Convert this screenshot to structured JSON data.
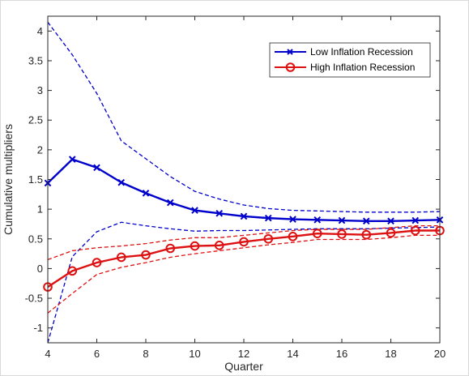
{
  "chart_data": {
    "type": "line",
    "title": "",
    "xlabel": "Quarter",
    "ylabel": "Cumulative multipliers",
    "xlim": [
      4,
      20
    ],
    "ylim": [
      -1.25,
      4.25
    ],
    "xticks": [
      4,
      6,
      8,
      10,
      12,
      14,
      16,
      18,
      20
    ],
    "yticks": [
      -1,
      -0.5,
      0,
      0.5,
      1,
      1.5,
      2,
      2.5,
      3,
      3.5,
      4
    ],
    "x": [
      4,
      5,
      6,
      7,
      8,
      9,
      10,
      11,
      12,
      13,
      14,
      15,
      16,
      17,
      18,
      19,
      20
    ],
    "grid": false,
    "legend_position": "top-right",
    "series": [
      {
        "name": "Low Inflation Recession",
        "color": "#0000cc",
        "marker": "x",
        "values": [
          1.44,
          1.84,
          1.7,
          1.45,
          1.27,
          1.11,
          0.98,
          0.93,
          0.88,
          0.85,
          0.83,
          0.82,
          0.81,
          0.8,
          0.8,
          0.81,
          0.82
        ],
        "upper": [
          4.15,
          3.6,
          2.95,
          2.15,
          1.85,
          1.55,
          1.3,
          1.17,
          1.07,
          1.01,
          0.98,
          0.97,
          0.96,
          0.95,
          0.95,
          0.95,
          0.96
        ],
        "lower": [
          -1.25,
          0.2,
          0.62,
          0.78,
          0.72,
          0.67,
          0.63,
          0.64,
          0.64,
          0.65,
          0.66,
          0.67,
          0.67,
          0.67,
          0.68,
          0.69,
          0.7
        ]
      },
      {
        "name": "High Inflation Recession",
        "color": "#dd1111",
        "marker": "o",
        "values": [
          -0.31,
          -0.04,
          0.1,
          0.19,
          0.23,
          0.34,
          0.38,
          0.39,
          0.45,
          0.5,
          0.54,
          0.59,
          0.58,
          0.57,
          0.6,
          0.64,
          0.64
        ],
        "upper": [
          0.15,
          0.3,
          0.35,
          0.38,
          0.42,
          0.48,
          0.52,
          0.52,
          0.56,
          0.6,
          0.64,
          0.66,
          0.66,
          0.66,
          0.69,
          0.72,
          0.72
        ],
        "lower": [
          -0.75,
          -0.42,
          -0.1,
          0.02,
          0.1,
          0.19,
          0.25,
          0.3,
          0.35,
          0.4,
          0.44,
          0.49,
          0.49,
          0.49,
          0.52,
          0.56,
          0.56
        ]
      }
    ]
  }
}
